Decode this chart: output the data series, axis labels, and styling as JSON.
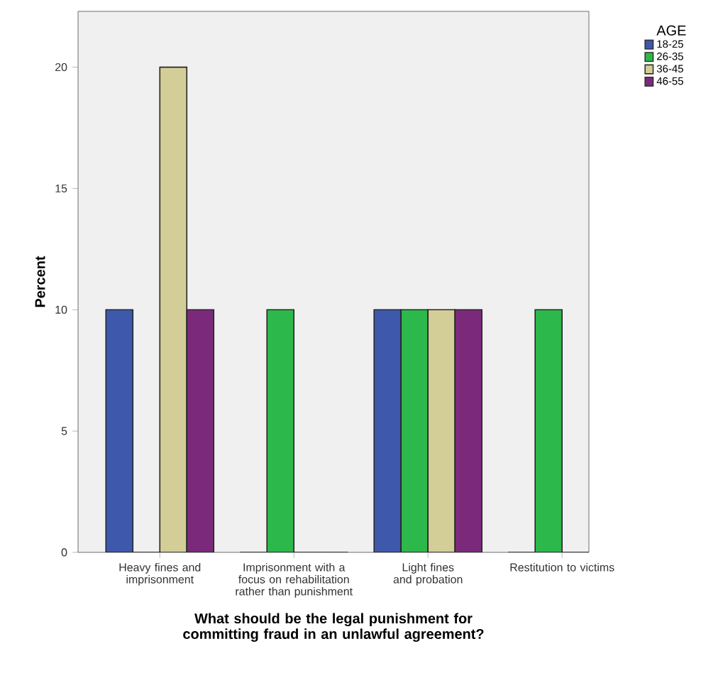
{
  "chart_data": {
    "type": "bar",
    "xlabel": "What should be the legal punishment for committing fraud in an unlawful agreement?",
    "ylabel": "Percent",
    "categories": [
      "Heavy fines and imprisonment",
      "Imprisonment with a focus on rehabilitation rather than punishment",
      "Light fines and probation",
      "Restitution to victims"
    ],
    "legend_title": "AGE",
    "series": [
      {
        "name": "18-25",
        "color": "#3e58ac",
        "values": [
          10,
          0,
          10,
          0
        ]
      },
      {
        "name": "26-35",
        "color": "#2db84b",
        "values": [
          0,
          10,
          10,
          10
        ]
      },
      {
        "name": "36-45",
        "color": "#d3ce97",
        "values": [
          20,
          0,
          10,
          0
        ]
      },
      {
        "name": "46-55",
        "color": "#7b2a7b",
        "values": [
          10,
          0,
          10,
          0
        ]
      }
    ],
    "ylim": [
      0,
      22.3
    ],
    "yticks": [
      0,
      5,
      10,
      15,
      20
    ],
    "legend": "right"
  }
}
